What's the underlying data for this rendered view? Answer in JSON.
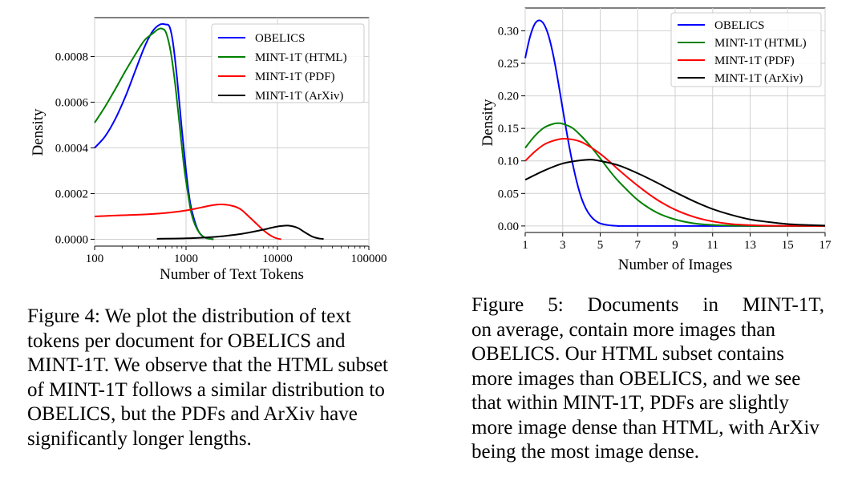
{
  "figure4": {
    "chart_data": {
      "type": "line",
      "xscale": "log",
      "xlabel": "Number of Text Tokens",
      "ylabel": "Density",
      "xlim": [
        100,
        100000
      ],
      "ylim": [
        -3e-05,
        0.00097
      ],
      "x_ticks": [
        100,
        1000,
        10000,
        100000
      ],
      "x_tick_labels": [
        "100",
        "1000",
        "10000",
        "100000"
      ],
      "y_ticks": [
        0,
        0.0002,
        0.0004,
        0.0006,
        0.0008
      ],
      "y_tick_labels": [
        "0.0000",
        "0.0002",
        "0.0004",
        "0.0006",
        "0.0008"
      ],
      "grid": true,
      "legend_position": "top-right",
      "series": [
        {
          "name": "OBELICS",
          "color": "#0000ff",
          "x": [
            100,
            130,
            170,
            220,
            280,
            350,
            430,
            520,
            600,
            660,
            720,
            800,
            900,
            1000,
            1100,
            1200,
            1350,
            1500,
            1700,
            2000
          ],
          "y": [
            0.0004,
            0.00045,
            0.00053,
            0.00063,
            0.00074,
            0.00084,
            0.00091,
            0.00094,
            0.00094,
            0.00093,
            0.00086,
            0.0007,
            0.00048,
            0.0003,
            0.00017,
            0.0001,
            4e-05,
            1.5e-05,
            4e-06,
            0.0
          ]
        },
        {
          "name": "MINT-1T (HTML)",
          "color": "#008000",
          "x": [
            100,
            130,
            170,
            220,
            280,
            350,
            430,
            500,
            560,
            610,
            680,
            760,
            850,
            950,
            1050,
            1150,
            1300,
            1500,
            1700,
            2000
          ],
          "y": [
            0.00051,
            0.00058,
            0.00066,
            0.00074,
            0.00081,
            0.00087,
            0.0009,
            0.00092,
            0.00092,
            0.0009,
            0.00082,
            0.00068,
            0.0005,
            0.00032,
            0.0002,
            0.00011,
            5e-05,
            1.5e-05,
            4e-06,
            0.0
          ]
        },
        {
          "name": "MINT-1T (PDF)",
          "color": "#ff0000",
          "x": [
            100,
            200,
            400,
            700,
            1000,
            1500,
            2000,
            2600,
            3300,
            4000,
            5000,
            6000,
            7000,
            8000,
            9000,
            10000,
            11000
          ],
          "y": [
            0.0001,
            0.000105,
            0.00011,
            0.000118,
            0.000126,
            0.00014,
            0.00015,
            0.000152,
            0.000145,
            0.00013,
            9.5e-05,
            6.5e-05,
            4e-05,
            2.2e-05,
            1e-05,
            3e-06,
            0.0
          ]
        },
        {
          "name": "MINT-1T (ArXiv)",
          "color": "#000000",
          "x": [
            480,
            1000,
            2000,
            3500,
            5000,
            7000,
            9000,
            11000,
            13000,
            15000,
            17000,
            20000,
            24000,
            28000,
            32000
          ],
          "y": [
            2e-06,
            4e-06,
            1e-05,
            2e-05,
            3e-05,
            4.2e-05,
            5.2e-05,
            5.8e-05,
            6e-05,
            5.6e-05,
            4.8e-05,
            3e-05,
            1.2e-05,
            4e-06,
            1e-06
          ]
        }
      ]
    },
    "caption": {
      "head": "Figure 4: We plot the distribution of text",
      "body": "tokens per document for OBELICS and MINT-1T. We observe that the HTML subset of MINT-1T follows a similar distribution to OBELICS, but the PDFs and ArXiv have significantly longer lengths."
    }
  },
  "figure5": {
    "chart_data": {
      "type": "line",
      "xscale": "linear",
      "xlabel": "Number of Images",
      "ylabel": "Density",
      "xlim": [
        1,
        17
      ],
      "ylim": [
        -0.01,
        0.335
      ],
      "x_ticks": [
        1,
        3,
        5,
        7,
        9,
        11,
        13,
        15,
        17
      ],
      "x_tick_labels": [
        "1",
        "3",
        "5",
        "7",
        "9",
        "11",
        "13",
        "15",
        "17"
      ],
      "y_ticks": [
        0,
        0.05,
        0.1,
        0.15,
        0.2,
        0.25,
        0.3
      ],
      "y_tick_labels": [
        "0.00",
        "0.05",
        "0.10",
        "0.15",
        "0.20",
        "0.25",
        "0.30"
      ],
      "grid": true,
      "legend_position": "top-right",
      "series": [
        {
          "name": "OBELICS",
          "color": "#0000ff",
          "x": [
            1,
            1.25,
            1.5,
            1.75,
            2,
            2.25,
            2.5,
            2.75,
            3,
            3.25,
            3.5,
            3.75,
            4,
            4.25,
            4.5,
            4.75,
            5,
            5.5,
            6,
            7,
            17
          ],
          "y": [
            0.258,
            0.29,
            0.31,
            0.316,
            0.31,
            0.292,
            0.262,
            0.223,
            0.18,
            0.138,
            0.1,
            0.068,
            0.043,
            0.026,
            0.015,
            0.008,
            0.004,
            0.001,
            0.0,
            0.0,
            0.0
          ]
        },
        {
          "name": "MINT-1T (HTML)",
          "color": "#008000",
          "x": [
            1,
            1.5,
            2,
            2.5,
            2.8,
            3,
            3.5,
            4,
            4.5,
            5,
            5.5,
            6,
            7,
            8,
            9,
            10,
            11,
            12,
            13,
            14,
            17
          ],
          "y": [
            0.12,
            0.138,
            0.151,
            0.157,
            0.158,
            0.157,
            0.151,
            0.138,
            0.122,
            0.104,
            0.085,
            0.068,
            0.04,
            0.021,
            0.01,
            0.004,
            0.0015,
            0.0005,
            0.0001,
            0.0,
            0.0
          ]
        },
        {
          "name": "MINT-1T (PDF)",
          "color": "#ff0000",
          "x": [
            1,
            1.5,
            2,
            2.5,
            3,
            3.5,
            4,
            4.5,
            5,
            5.5,
            6,
            7,
            8,
            9,
            10,
            11,
            12,
            13,
            14,
            15,
            17
          ],
          "y": [
            0.1,
            0.114,
            0.125,
            0.131,
            0.134,
            0.133,
            0.129,
            0.121,
            0.111,
            0.099,
            0.086,
            0.062,
            0.041,
            0.025,
            0.014,
            0.007,
            0.003,
            0.0013,
            0.0005,
            0.0002,
            0.0
          ]
        },
        {
          "name": "MINT-1T (ArXiv)",
          "color": "#000000",
          "x": [
            1,
            2,
            3,
            4,
            4.5,
            5,
            6,
            7,
            8,
            9,
            10,
            11,
            12,
            13,
            14,
            15,
            16,
            17
          ],
          "y": [
            0.071,
            0.085,
            0.096,
            0.101,
            0.102,
            0.1,
            0.093,
            0.081,
            0.067,
            0.052,
            0.038,
            0.026,
            0.017,
            0.01,
            0.006,
            0.003,
            0.0015,
            0.0006
          ]
        }
      ]
    },
    "caption": {
      "head": "Figure 5: Documents in MINT-1T,",
      "body": "on average, contain more images than OBELICS. Our HTML subset contains more images than OBELICS, and we see that within MINT-1T, PDFs are slightly more image dense than HTML, with ArXiv being the most image dense."
    }
  }
}
